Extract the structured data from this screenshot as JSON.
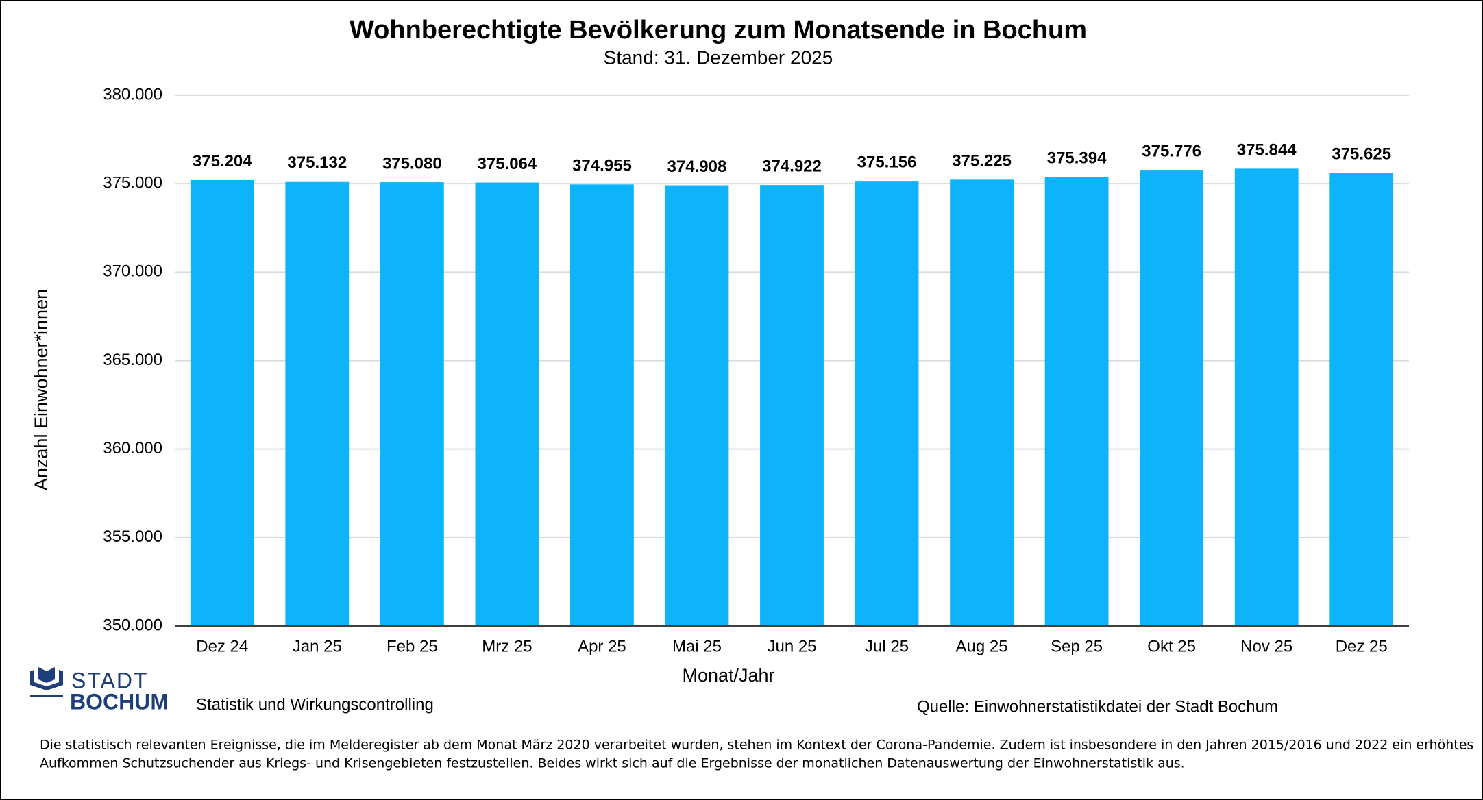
{
  "chart_data": {
    "type": "bar",
    "title": "Wohnberechtigte Bevölkerung zum Monatsende in Bochum",
    "subtitle": "Stand: 31. Dezember 2025",
    "x_label": "Monat/Jahr",
    "y_label": "Anzahl Einwohner*innen",
    "categories": [
      "Dez 24",
      "Jan 25",
      "Feb 25",
      "Mrz 25",
      "Apr 25",
      "Mai 25",
      "Jun 25",
      "Jul 25",
      "Aug 25",
      "Sep 25",
      "Okt 25",
      "Nov 25",
      "Dez 25"
    ],
    "values": [
      375204,
      375132,
      375080,
      375064,
      374955,
      374908,
      374922,
      375156,
      375225,
      375394,
      375776,
      375844,
      375625
    ],
    "value_labels": [
      "375.204",
      "375.132",
      "375.080",
      "375.064",
      "374.955",
      "374.908",
      "374.922",
      "375.156",
      "375.225",
      "375.394",
      "375.776",
      "375.844",
      "375.625"
    ],
    "color": "#0db4fb",
    "ylim": [
      350000,
      380000
    ],
    "yticks": [
      {
        "value": 350000,
        "label": "350.000"
      },
      {
        "value": 355000,
        "label": "355.000"
      },
      {
        "value": 360000,
        "label": "360.000"
      },
      {
        "value": 365000,
        "label": "365.000"
      },
      {
        "value": 370000,
        "label": "370.000"
      },
      {
        "value": 375000,
        "label": "375.000"
      },
      {
        "value": 380000,
        "label": "380.000"
      }
    ],
    "grid": true
  },
  "logo": {
    "line1": "STADT",
    "line2": "BOCHUM",
    "department": "Statistik und Wirkungscontrolling"
  },
  "source": "Quelle: Einwohnerstatistikdatei der Stadt Bochum",
  "footnote": [
    "Die statistisch relevanten Ereignisse, die im Melderegister ab dem Monat März 2020 verarbeitet wurden, stehen im Kontext der Corona-Pandemie. Zudem ist insbesondere in den Jahren 2015/2016 und 2022 ein erhöhtes",
    "Aufkommen Schutzsuchender aus Kriegs- und Krisengebieten festzustellen. Beides wirkt sich auf die Ergebnisse der monatlichen Datenauswertung der Einwohnerstatistik aus."
  ]
}
